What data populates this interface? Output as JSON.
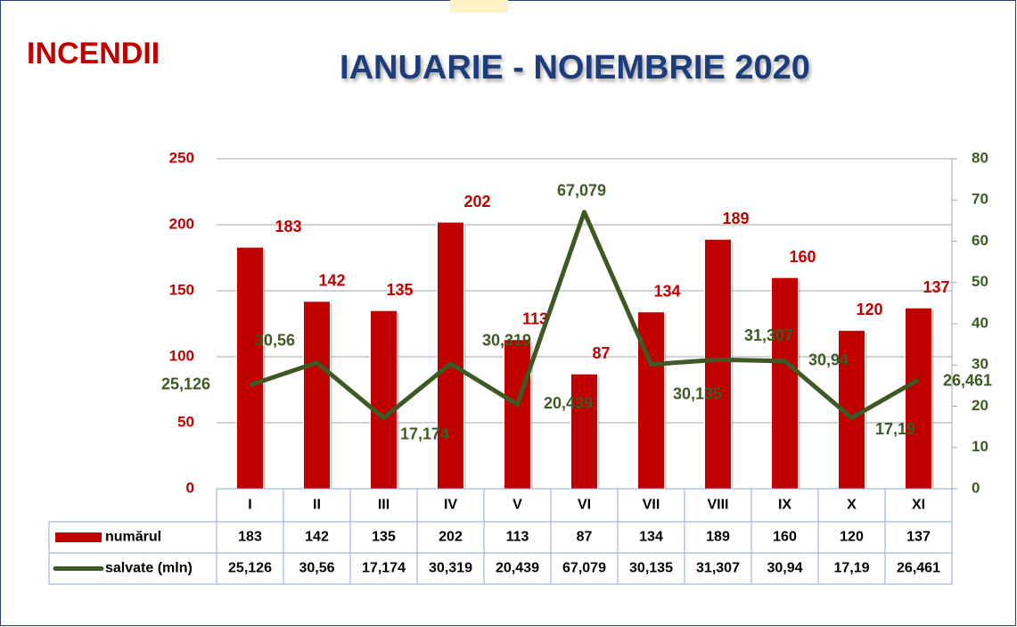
{
  "chart_data": {
    "type": "bar_line",
    "heading": "INCENDII",
    "title": "IANUARIE - NOIEMBRIE 2020",
    "categories": [
      "I",
      "II",
      "III",
      "IV",
      "V",
      "VI",
      "VII",
      "VIII",
      "IX",
      "X",
      "XI"
    ],
    "series": [
      {
        "name": "numărul",
        "type": "bar",
        "color": "#c00000",
        "values": [
          183,
          142,
          135,
          202,
          113,
          87,
          134,
          189,
          160,
          120,
          137
        ]
      },
      {
        "name": "salvate (mln)",
        "type": "line",
        "axis": "y2",
        "color": "#3e5a24",
        "values": [
          25.126,
          30.56,
          17.174,
          30.319,
          20.439,
          67.079,
          30.135,
          31.307,
          30.94,
          17.19,
          26.461
        ],
        "value_labels": [
          "25,126",
          "30,56",
          "17,174",
          "30,319",
          "20,439",
          "67,079",
          "30,135",
          "31,307",
          "30,94",
          "17,19",
          "26,461"
        ]
      }
    ],
    "ylim": [
      0,
      250
    ],
    "yticks": [
      0,
      50,
      100,
      150,
      200,
      250
    ],
    "y2lim": [
      0,
      80
    ],
    "y2ticks": [
      0,
      10,
      20,
      30,
      40,
      50,
      60,
      70,
      80
    ],
    "grid": true
  }
}
